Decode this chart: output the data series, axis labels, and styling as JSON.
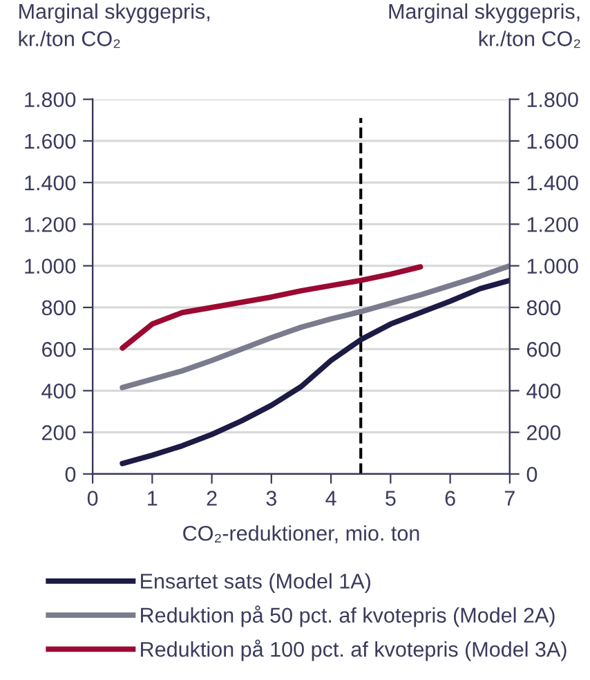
{
  "chart_data": {
    "type": "line",
    "ylabel": "Marginal skyggepris,\nkr./ton CO₂",
    "y2label": "Marginal skyggepris,\nkr./ton CO₂",
    "xlabel": "CO₂-reduktioner, mio. ton",
    "x": [
      0.5,
      1,
      1.5,
      2,
      2.5,
      3,
      3.5,
      4,
      4.5,
      5,
      5.5,
      6,
      6.5,
      7
    ],
    "series": [
      {
        "name": "Ensartet sats (Model 1A)",
        "color": "#1b1b45",
        "values": [
          50,
          90,
          135,
          190,
          255,
          330,
          420,
          545,
          645,
          720,
          775,
          830,
          890,
          930
        ]
      },
      {
        "name": "Reduktion på 50 pct. af kvotepris (Model 2A)",
        "color": "#7b7b8e",
        "values": [
          415,
          455,
          495,
          545,
          600,
          655,
          705,
          745,
          780,
          820,
          860,
          905,
          950,
          1000
        ]
      },
      {
        "name": "Reduktion på 100 pct. af kvotepris (Model 3A)",
        "color": "#9b0a32",
        "values": [
          605,
          720,
          775,
          800,
          825,
          850,
          880,
          905,
          930,
          960,
          995,
          null,
          null,
          null
        ]
      }
    ],
    "xlim": [
      0,
      7
    ],
    "xticks": [
      0,
      1,
      2,
      3,
      4,
      5,
      6,
      7
    ],
    "ylim": [
      0,
      1800
    ],
    "yticks": [
      0,
      200,
      400,
      600,
      800,
      {
        "value": 1000,
        "label": "1.000"
      },
      {
        "value": 1200,
        "label": "1.200"
      },
      {
        "value": 1400,
        "label": "1.400"
      },
      {
        "value": 1600,
        "label": "1.600"
      },
      {
        "value": 1800,
        "label": "1.800"
      }
    ],
    "y2lim": [
      0,
      1800
    ],
    "y2ticks": [
      0,
      200,
      400,
      600,
      800,
      {
        "value": 1000,
        "label": "1.000"
      },
      {
        "value": 1200,
        "label": "1.200"
      },
      {
        "value": 1400,
        "label": "1.400"
      },
      {
        "value": 1600,
        "label": "1.600"
      },
      {
        "value": 1800,
        "label": "1.800"
      }
    ],
    "ref_lines": [
      {
        "axis": "x",
        "value": 4.5,
        "color": "#000000",
        "line_style": "dashed"
      }
    ],
    "grid": "y",
    "legend": "bottom",
    "marker": "none",
    "line_style": "solid"
  }
}
